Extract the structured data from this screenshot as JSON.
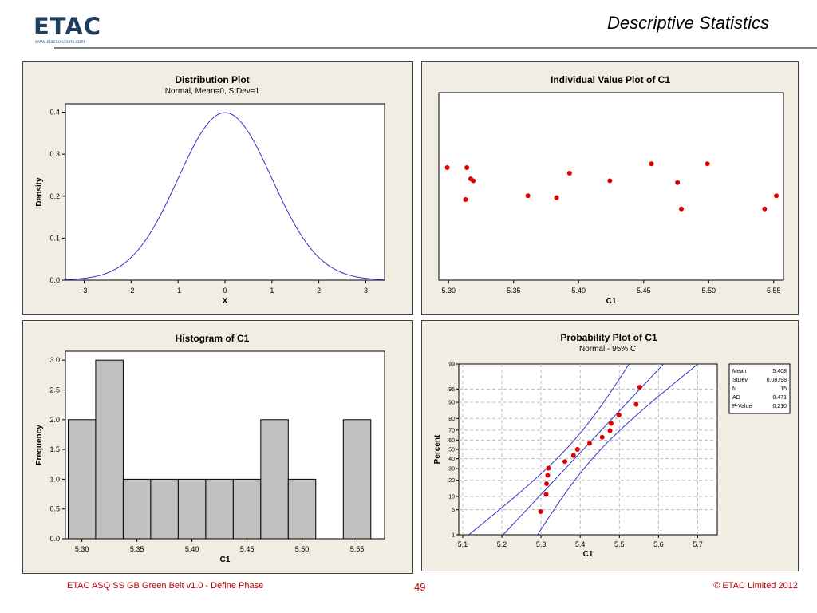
{
  "header": {
    "logo_text": "ETAC",
    "logo_url": "www.etacsolutions.com",
    "title": "Descriptive Statistics"
  },
  "footer": {
    "left": "ETAC ASQ SS GB Green Belt v1.0 - Define Phase",
    "page": "49",
    "right": "© ETAC Limited 2012"
  },
  "chart_data": [
    {
      "type": "line",
      "title": "Distribution Plot",
      "subtitle": "Normal, Mean=0, StDev=1",
      "xlabel": "X",
      "ylabel": "Density",
      "xlim": [
        -3.4,
        3.4
      ],
      "ylim": [
        0,
        0.42
      ],
      "xticks": [
        -3,
        -2,
        -1,
        0,
        1,
        2,
        3
      ],
      "yticks": [
        0.0,
        0.1,
        0.2,
        0.3,
        0.4
      ],
      "ytick_labels": [
        "0.0",
        "0.1",
        "0.2",
        "0.3",
        "0.4"
      ],
      "series": [
        {
          "distribution": "normal",
          "mean": 0,
          "stdev": 1,
          "color": "#3333cc"
        }
      ]
    },
    {
      "type": "scatter",
      "title": "Individual Value Plot of C1",
      "xlabel": "C1",
      "xlim": [
        5.2925,
        5.5575
      ],
      "xticks": [
        5.3,
        5.35,
        5.4,
        5.45,
        5.5,
        5.55
      ],
      "xtick_labels": [
        "5.30",
        "5.35",
        "5.40",
        "5.45",
        "5.50",
        "5.55"
      ],
      "ylim": [
        0,
        1
      ],
      "points": [
        {
          "x": 5.299,
          "y": 0.6
        },
        {
          "x": 5.313,
          "y": 0.43
        },
        {
          "x": 5.314,
          "y": 0.6
        },
        {
          "x": 5.317,
          "y": 0.54
        },
        {
          "x": 5.319,
          "y": 0.53
        },
        {
          "x": 5.361,
          "y": 0.45
        },
        {
          "x": 5.383,
          "y": 0.44
        },
        {
          "x": 5.393,
          "y": 0.57
        },
        {
          "x": 5.424,
          "y": 0.53
        },
        {
          "x": 5.456,
          "y": 0.62
        },
        {
          "x": 5.476,
          "y": 0.52
        },
        {
          "x": 5.479,
          "y": 0.38
        },
        {
          "x": 5.499,
          "y": 0.62
        },
        {
          "x": 5.543,
          "y": 0.38
        },
        {
          "x": 5.552,
          "y": 0.45
        }
      ],
      "color": "#dd0000"
    },
    {
      "type": "bar",
      "title": "Histogram of C1",
      "xlabel": "C1",
      "ylabel": "Frequency",
      "xlim": [
        5.285,
        5.575
      ],
      "ylim": [
        0,
        3.15
      ],
      "xticks": [
        5.3,
        5.35,
        5.4,
        5.45,
        5.5,
        5.55
      ],
      "xtick_labels": [
        "5.30",
        "5.35",
        "5.40",
        "5.45",
        "5.50",
        "5.55"
      ],
      "yticks": [
        0.0,
        0.5,
        1.0,
        1.5,
        2.0,
        2.5,
        3.0
      ],
      "ytick_labels": [
        "0.0",
        "0.5",
        "1.0",
        "1.5",
        "2.0",
        "2.5",
        "3.0"
      ],
      "bin_width": 0.025,
      "bin_centers": [
        5.3,
        5.325,
        5.35,
        5.375,
        5.4,
        5.425,
        5.45,
        5.475,
        5.5,
        5.525,
        5.55
      ],
      "values": [
        2,
        3,
        1,
        1,
        1,
        1,
        1,
        2,
        1,
        0,
        2
      ],
      "color": "#c0c0c0"
    },
    {
      "type": "scatter",
      "title": "Probability Plot of C1",
      "subtitle": "Normal - 95% CI",
      "xlabel": "C1",
      "ylabel": "Percent",
      "xlim": [
        5.09,
        5.75
      ],
      "xticks": [
        5.1,
        5.2,
        5.3,
        5.4,
        5.5,
        5.6,
        5.7
      ],
      "xtick_labels": [
        "5.1",
        "5.2",
        "5.3",
        "5.4",
        "5.5",
        "5.6",
        "5.7"
      ],
      "y_scale": "normal-probability",
      "ylim_percent": [
        1,
        99
      ],
      "yticks_percent": [
        1,
        5,
        10,
        20,
        30,
        40,
        50,
        60,
        70,
        80,
        90,
        95,
        99
      ],
      "points": [
        {
          "x": 5.299,
          "p": 4.5
        },
        {
          "x": 5.313,
          "p": 11
        },
        {
          "x": 5.314,
          "p": 17.5
        },
        {
          "x": 5.317,
          "p": 24
        },
        {
          "x": 5.319,
          "p": 30.5
        },
        {
          "x": 5.361,
          "p": 37
        },
        {
          "x": 5.383,
          "p": 43.5
        },
        {
          "x": 5.393,
          "p": 50
        },
        {
          "x": 5.424,
          "p": 56.5
        },
        {
          "x": 5.456,
          "p": 63
        },
        {
          "x": 5.476,
          "p": 69.5
        },
        {
          "x": 5.479,
          "p": 76
        },
        {
          "x": 5.499,
          "p": 82.5
        },
        {
          "x": 5.543,
          "p": 89
        },
        {
          "x": 5.552,
          "p": 95.5
        }
      ],
      "fit": {
        "mean": 5.408,
        "stdev": 0.08798
      },
      "point_color": "#dd0000",
      "line_color": "#3333cc",
      "stats_box": [
        {
          "label": "Mean",
          "value": "5.408"
        },
        {
          "label": "StDev",
          "value": "0.08798"
        },
        {
          "label": "N",
          "value": "15"
        },
        {
          "label": "AD",
          "value": "0.471"
        },
        {
          "label": "P-Value",
          "value": "0.210"
        }
      ]
    }
  ]
}
